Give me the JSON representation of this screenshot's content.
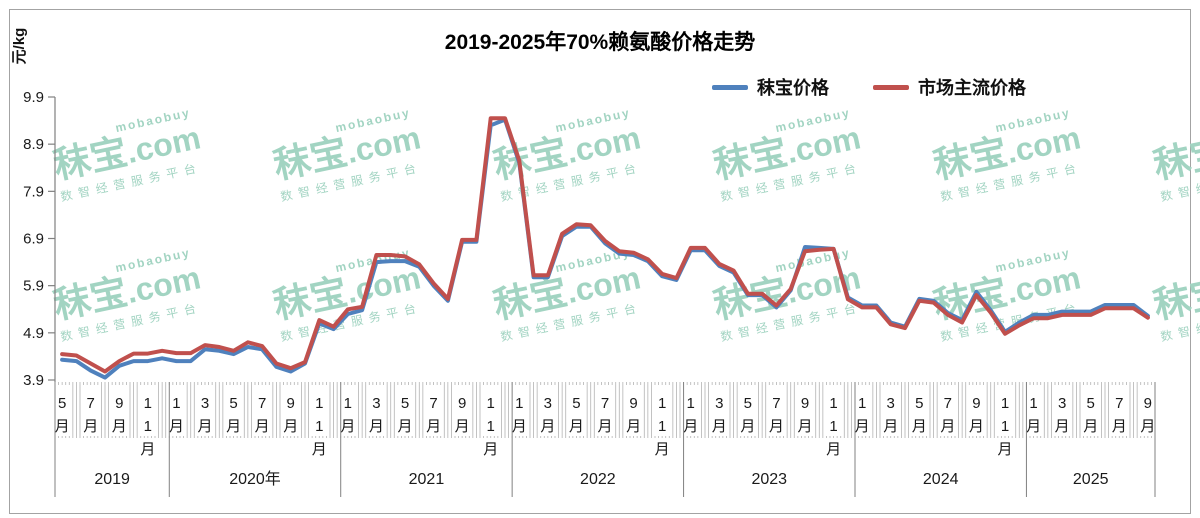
{
  "title": "2019-2025年70%赖氨酸价格走势",
  "y_axis": {
    "unit": "元/kg",
    "ticks": [
      "3.9",
      "4.9",
      "5.9",
      "6.9",
      "7.9",
      "8.9",
      "9.9"
    ]
  },
  "legend": [
    {
      "label": "秣宝价格",
      "color": "#4f81bd"
    },
    {
      "label": "市场主流价格",
      "color": "#c0504d"
    }
  ],
  "x_axis": {
    "years": [
      {
        "label": "2019",
        "month_count": 8,
        "labeled_months": [
          5,
          7,
          9,
          11
        ]
      },
      {
        "label": "2020年",
        "month_count": 12,
        "labeled_months": [
          1,
          3,
          5,
          7,
          9,
          11
        ]
      },
      {
        "label": "2021",
        "month_count": 12,
        "labeled_months": [
          1,
          3,
          5,
          7,
          9,
          11
        ]
      },
      {
        "label": "2022",
        "month_count": 12,
        "labeled_months": [
          1,
          3,
          5,
          7,
          9,
          11
        ]
      },
      {
        "label": "2023",
        "month_count": 12,
        "labeled_months": [
          1,
          3,
          5,
          7,
          9,
          11
        ]
      },
      {
        "label": "2024",
        "month_count": 12,
        "labeled_months": [
          1,
          3,
          5,
          7,
          9,
          11
        ]
      },
      {
        "label": "2025",
        "month_count": 9,
        "labeled_months": [
          1,
          3,
          5,
          7,
          9
        ]
      }
    ],
    "month_suffix": "月"
  },
  "watermark": {
    "brand": "秣宝",
    "domain": ".com",
    "sub": "mobaobuy",
    "slogan": "数智经营服务平台",
    "color": "#a2d4c2"
  },
  "chart_data": {
    "type": "line",
    "title": "2019-2025年70%赖氨酸价格走势",
    "ylabel": "元/kg",
    "ylim": [
      3.9,
      9.9
    ],
    "y_tick_step": 1.0,
    "grid": false,
    "legend_position": "top-right",
    "x": [
      "2019-05",
      "2019-06",
      "2019-07",
      "2019-08",
      "2019-09",
      "2019-10",
      "2019-11",
      "2019-12",
      "2020-01",
      "2020-02",
      "2020-03",
      "2020-04",
      "2020-05",
      "2020-06",
      "2020-07",
      "2020-08",
      "2020-09",
      "2020-10",
      "2020-11",
      "2020-12",
      "2021-01",
      "2021-02",
      "2021-03",
      "2021-04",
      "2021-05",
      "2021-06",
      "2021-07",
      "2021-08",
      "2021-09",
      "2021-10",
      "2021-11",
      "2021-12",
      "2022-01",
      "2022-02",
      "2022-03",
      "2022-04",
      "2022-05",
      "2022-06",
      "2022-07",
      "2022-08",
      "2022-09",
      "2022-10",
      "2022-11",
      "2022-12",
      "2023-01",
      "2023-02",
      "2023-03",
      "2023-04",
      "2023-05",
      "2023-06",
      "2023-07",
      "2023-08",
      "2023-09",
      "2023-10",
      "2023-11",
      "2023-12",
      "2024-01",
      "2024-02",
      "2024-03",
      "2024-04",
      "2024-05",
      "2024-06",
      "2024-07",
      "2024-08",
      "2024-09",
      "2024-10",
      "2024-11",
      "2024-12",
      "2025-01",
      "2025-02",
      "2025-03",
      "2025-04",
      "2025-05",
      "2025-06",
      "2025-07",
      "2025-08",
      "2025-09"
    ],
    "series": [
      {
        "name": "秣宝价格",
        "color": "#4f81bd",
        "values": [
          4.33,
          4.3,
          4.1,
          3.95,
          4.2,
          4.3,
          4.3,
          4.36,
          4.3,
          4.3,
          4.55,
          4.52,
          4.45,
          4.6,
          4.55,
          4.18,
          4.08,
          4.25,
          5.1,
          4.98,
          5.3,
          5.38,
          6.4,
          6.42,
          6.42,
          6.3,
          5.9,
          5.58,
          6.83,
          6.83,
          9.3,
          9.42,
          8.5,
          6.08,
          6.08,
          6.95,
          7.15,
          7.15,
          6.8,
          6.58,
          6.55,
          6.42,
          6.1,
          6.02,
          6.65,
          6.65,
          6.32,
          6.18,
          5.7,
          5.7,
          5.44,
          5.8,
          6.72,
          6.7,
          6.68,
          5.65,
          5.48,
          5.48,
          5.12,
          5.03,
          5.62,
          5.58,
          5.32,
          5.17,
          5.77,
          5.38,
          4.92,
          5.12,
          5.28,
          5.28,
          5.35,
          5.35,
          5.35,
          5.49,
          5.49,
          5.49,
          5.26
        ]
      },
      {
        "name": "市场主流价格",
        "color": "#c0504d",
        "values": [
          4.45,
          4.42,
          4.25,
          4.08,
          4.3,
          4.46,
          4.46,
          4.52,
          4.47,
          4.47,
          4.64,
          4.6,
          4.52,
          4.7,
          4.62,
          4.25,
          4.15,
          4.28,
          5.17,
          5.03,
          5.4,
          5.45,
          6.55,
          6.55,
          6.52,
          6.35,
          5.95,
          5.62,
          6.87,
          6.87,
          9.45,
          9.45,
          8.55,
          6.12,
          6.12,
          7.0,
          7.2,
          7.18,
          6.85,
          6.63,
          6.6,
          6.46,
          6.15,
          6.06,
          6.7,
          6.7,
          6.36,
          6.22,
          5.73,
          5.73,
          5.48,
          5.83,
          6.63,
          6.66,
          6.68,
          5.61,
          5.44,
          5.44,
          5.08,
          5.0,
          5.58,
          5.54,
          5.28,
          5.12,
          5.7,
          5.33,
          4.88,
          5.06,
          5.21,
          5.21,
          5.28,
          5.28,
          5.28,
          5.42,
          5.42,
          5.42,
          5.22
        ]
      }
    ]
  }
}
